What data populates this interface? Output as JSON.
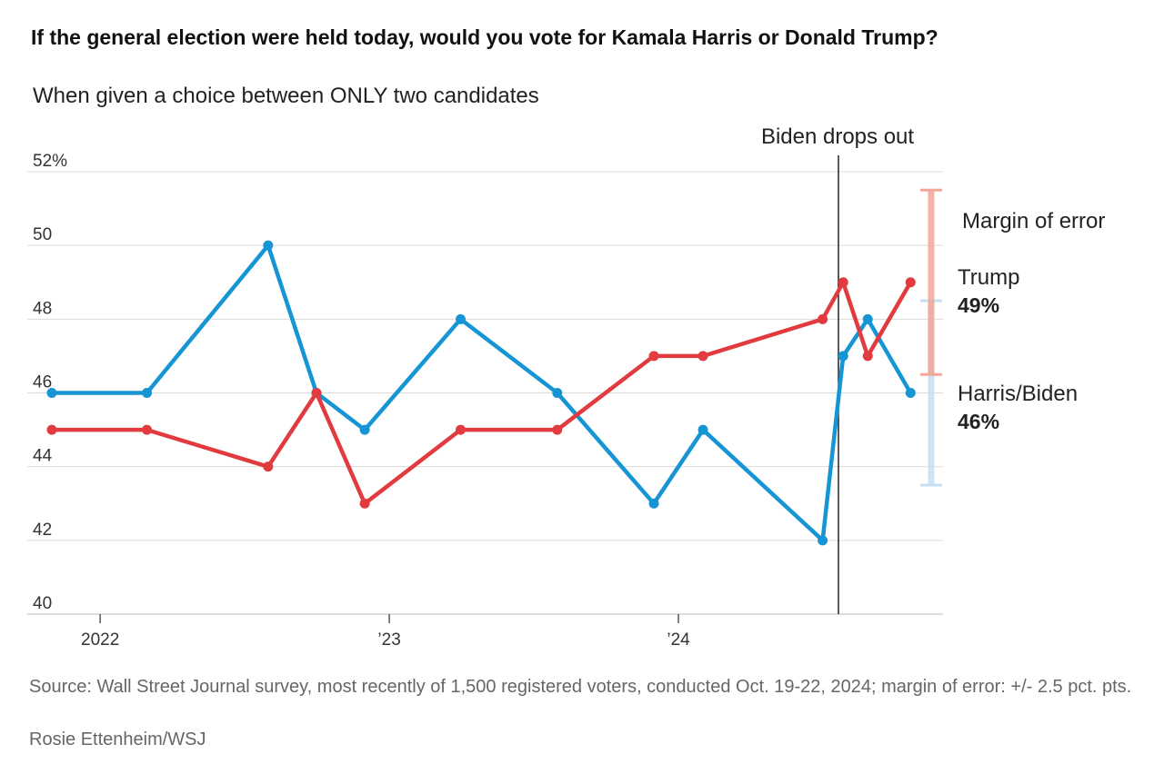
{
  "title": "If the general election were held today, would you vote for Kamala Harris or Donald Trump?",
  "subtitle": "When given a choice between ONLY two candidates",
  "source": "Source: Wall Street Journal survey, most recently of 1,500 registered voters, conducted Oct. 19-22, 2024; margin of error: +/- 2.5 pct. pts.",
  "credit": "Rosie Ettenheim/WSJ",
  "colors": {
    "trump": "#e23b3f",
    "harris": "#1595d3",
    "trump_moe": "#f2a799",
    "harris_moe": "#c6dff3",
    "grid": "#dcdcdc",
    "axis": "#555555"
  },
  "chart_data": {
    "type": "line",
    "title": "If the general election were held today, would you vote for Kamala Harris or Donald Trump?",
    "subtitle": "When given a choice between ONLY two candidates",
    "y_ticks": [
      "40",
      "42",
      "44",
      "46",
      "48",
      "50",
      "52%"
    ],
    "y_tick_values": [
      40,
      42,
      44,
      46,
      48,
      50,
      52
    ],
    "ylim": [
      40,
      52
    ],
    "x_ticks": [
      {
        "label": "2022",
        "date": "2022-01-01"
      },
      {
        "label": "’23",
        "date": "2023-01-01"
      },
      {
        "label": "’24",
        "date": "2024-01-01"
      }
    ],
    "xlim": [
      "2021-10-01",
      "2024-11-30"
    ],
    "series": [
      {
        "name": "Harris/Biden",
        "end_value_label": "46%",
        "x": [
          "2021-11-01",
          "2022-03-01",
          "2022-08-01",
          "2022-10-01",
          "2022-12-01",
          "2023-04-01",
          "2023-08-01",
          "2023-12-01",
          "2024-02-01",
          "2024-07-01",
          "2024-07-27",
          "2024-08-27",
          "2024-10-20"
        ],
        "values": [
          46,
          46,
          50,
          46,
          45,
          48,
          46,
          43,
          45,
          42,
          47,
          48,
          46
        ]
      },
      {
        "name": "Trump",
        "end_value_label": "49%",
        "x": [
          "2021-11-01",
          "2022-03-01",
          "2022-08-01",
          "2022-10-01",
          "2022-12-01",
          "2023-04-01",
          "2023-08-01",
          "2023-12-01",
          "2024-02-01",
          "2024-07-01",
          "2024-07-27",
          "2024-08-27",
          "2024-10-20"
        ],
        "values": [
          45,
          45,
          44,
          46,
          43,
          45,
          45,
          47,
          47,
          48,
          49,
          47,
          49
        ]
      }
    ],
    "annotations": [
      {
        "label": "Biden drops out",
        "date": "2024-07-21"
      },
      {
        "label": "Margin of error",
        "date": "2024-11-15",
        "trump_range": [
          46.5,
          51.5
        ],
        "harris_range": [
          43.5,
          48.5
        ]
      }
    ],
    "grid": true
  }
}
